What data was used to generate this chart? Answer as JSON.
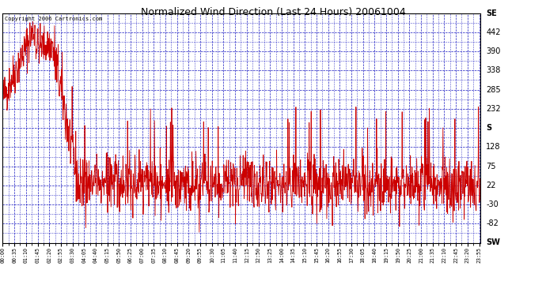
{
  "title": "Normalized Wind Direction (Last 24 Hours) 20061004",
  "copyright_text": "Copyright 2006 Cartronics.com",
  "background_color": "#ffffff",
  "plot_bg_color": "#ffffff",
  "grid_color": "#0000bb",
  "line_color": "#cc0000",
  "line_width": 0.6,
  "ytick_labels_right": [
    "SE",
    "442",
    "390",
    "338",
    "285",
    "232",
    "S",
    "128",
    "75",
    "22",
    "-30",
    "-82",
    "SW"
  ],
  "ytick_values": [
    494,
    442,
    390,
    338,
    285,
    232,
    180,
    128,
    75,
    22,
    -30,
    -82,
    -134
  ],
  "ylim": [
    -134,
    494
  ],
  "xtick_labels": [
    "00:00",
    "00:35",
    "01:10",
    "01:45",
    "02:20",
    "02:55",
    "03:30",
    "04:05",
    "04:40",
    "05:15",
    "05:50",
    "06:25",
    "07:00",
    "07:35",
    "08:10",
    "08:45",
    "09:20",
    "09:55",
    "10:30",
    "11:05",
    "11:40",
    "12:15",
    "12:50",
    "13:25",
    "14:00",
    "14:35",
    "15:10",
    "15:45",
    "16:20",
    "16:55",
    "17:30",
    "18:05",
    "18:40",
    "19:15",
    "19:50",
    "20:25",
    "21:00",
    "21:35",
    "22:10",
    "22:45",
    "23:20",
    "23:55"
  ],
  "num_points": 1440,
  "seed": 42
}
